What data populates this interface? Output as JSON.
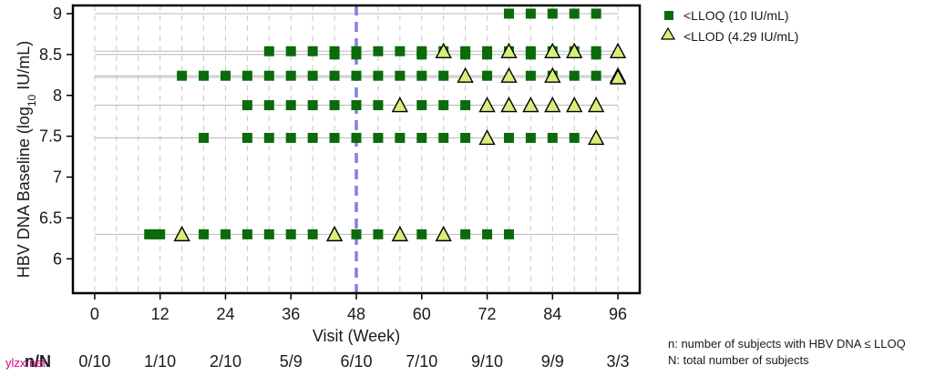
{
  "chart_data": {
    "type": "scatter",
    "xlabel": "Visit (Week)",
    "ylabel_parts": {
      "pre": "HBV  DNA  Baseline  (log",
      "sub": "10",
      "post": " IU/mL)"
    },
    "x_ticks": [
      "0",
      "12",
      "24",
      "36",
      "48",
      "60",
      "72",
      "84",
      "96"
    ],
    "y_ticks": [
      "6",
      "6.5",
      "7",
      "7.5",
      "8",
      "8.5",
      "9"
    ],
    "xlim": [
      -4,
      100
    ],
    "ylim": [
      5.58,
      9.1
    ],
    "grid": "vertical dashed every 4 weeks",
    "reference_line_x": 48,
    "legend_placement": "top-right",
    "legend": [
      {
        "marker": "square",
        "label": "<LLOQ (10 IU/mL)"
      },
      {
        "marker": "triangle",
        "label": "<LLOD (4.29 IU/mL)"
      }
    ],
    "colors": {
      "square": "#0a6b0a",
      "triangle_fill": "#d4f07a",
      "triangle_edge": "#000000",
      "ref_line": "#8080e8",
      "grid": "#c8c8c8",
      "baseline": "#b8b8b8"
    },
    "subjects": [
      {
        "baseline": 9.0,
        "squares": [
          76,
          80,
          84,
          88,
          92
        ],
        "triangles": []
      },
      {
        "baseline": 8.54,
        "squares": [
          32,
          36,
          40,
          44,
          48,
          52,
          56,
          60,
          64,
          68,
          72,
          76,
          80,
          84,
          88,
          92
        ],
        "triangles": [
          64,
          76,
          84,
          88,
          96
        ]
      },
      {
        "baseline": 8.5,
        "squares": [
          44,
          48,
          60,
          68,
          72,
          80,
          92
        ],
        "triangles": []
      },
      {
        "baseline": 8.24,
        "squares": [
          16,
          20,
          24,
          28,
          32,
          36,
          40,
          44,
          48,
          52,
          56,
          60,
          64,
          72,
          80,
          84,
          88,
          92
        ],
        "triangles": [
          68,
          76,
          84,
          96
        ]
      },
      {
        "baseline": 8.22,
        "squares": [],
        "triangles": [
          96
        ]
      },
      {
        "baseline": 7.88,
        "squares": [
          28,
          32,
          36,
          40,
          44,
          48,
          52,
          60,
          64,
          68
        ],
        "triangles": [
          56,
          72,
          76,
          80,
          84,
          88,
          92
        ]
      },
      {
        "baseline": 7.48,
        "squares": [
          20,
          28,
          32,
          36,
          40,
          44,
          48,
          52,
          56,
          60,
          64,
          68,
          76,
          80,
          84,
          88
        ],
        "triangles": [
          72,
          92
        ]
      },
      {
        "baseline": 6.3,
        "squares": [
          10,
          11,
          12,
          20,
          24,
          28,
          32,
          36,
          40,
          48,
          52,
          60,
          68,
          72,
          76
        ],
        "triangles": [
          16,
          44,
          56,
          64
        ]
      }
    ]
  },
  "summary_row": {
    "label": "n/N",
    "values": [
      "0/10",
      "1/10",
      "2/10",
      "5/9",
      "6/10",
      "7/10",
      "9/10",
      "9/9",
      "3/3"
    ]
  },
  "footnote": {
    "n": "n: number of subjects with HBV DNA ≤ LLOQ",
    "N": "N: total number of subjects"
  },
  "watermark": "ylzx.net"
}
